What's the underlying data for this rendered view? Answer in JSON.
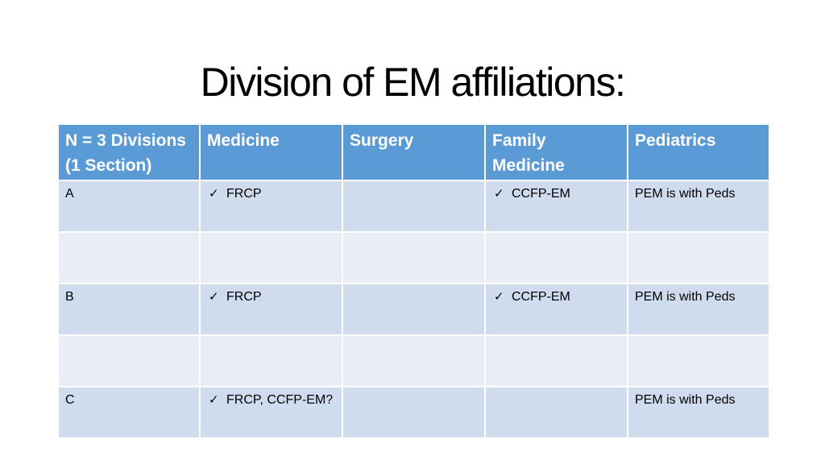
{
  "title": "Division of EM affiliations:",
  "table": {
    "headers": [
      "N = 3 Divisions (1 Section)",
      "Medicine",
      "Surgery",
      "Family Medicine",
      "Pediatrics"
    ],
    "rows": [
      {
        "division": "A",
        "medicine": "FRCP",
        "surgery": "",
        "family_medicine": "CCFP-EM",
        "pediatrics": "PEM is with Peds"
      },
      {
        "division": "",
        "medicine": "",
        "surgery": "",
        "family_medicine": "",
        "pediatrics": ""
      },
      {
        "division": "B",
        "medicine": "FRCP",
        "surgery": "",
        "family_medicine": "CCFP-EM",
        "pediatrics": "PEM is with Peds"
      },
      {
        "division": "",
        "medicine": "",
        "surgery": "",
        "family_medicine": "",
        "pediatrics": ""
      },
      {
        "division": "C",
        "medicine": "FRCP, CCFP-EM?",
        "surgery": "",
        "family_medicine": "",
        "pediatrics": "PEM is with Peds"
      }
    ]
  },
  "check_glyph": "✓",
  "colors": {
    "header": "#5b9bd5",
    "band_dark": "#cfdcee",
    "band_light": "#e9edf6"
  }
}
